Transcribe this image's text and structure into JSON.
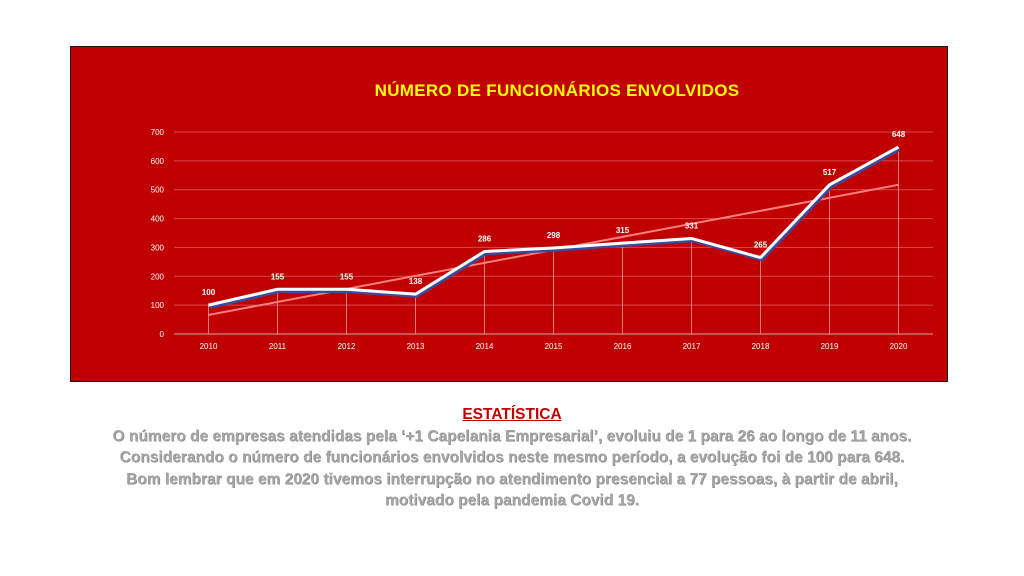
{
  "chart_data": {
    "type": "line",
    "title": "NÚMERO DE FUNCIONÁRIOS  ENVOLVIDOS",
    "categories": [
      "2010",
      "2011",
      "2012",
      "2013",
      "2014",
      "2015",
      "2016",
      "2017",
      "2018",
      "2019",
      "2020"
    ],
    "series": [
      {
        "values": [
          100,
          155,
          155,
          138,
          286,
          298,
          315,
          331,
          265,
          517,
          648
        ]
      }
    ],
    "trendline": {
      "type": "linear",
      "start": 66,
      "end": 517
    },
    "yticks": [
      "0",
      "100",
      "200",
      "300",
      "400",
      "500",
      "600",
      "700"
    ],
    "ylim": [
      0,
      700
    ],
    "grid": true,
    "colors": {
      "background": "#c00000",
      "line": "#ffffff",
      "line_shadow": "#3a4a9c",
      "trend": "#ff8080",
      "title": "#ffff00"
    }
  },
  "stats": {
    "heading": "ESTATÍSTICA",
    "lines": [
      "O número de empresas atendidas pela ‘+1 Capelania Empresarial’, evoluiu de 1 para 26 ao longo de 11 anos.",
      "Considerando o número de funcionários envolvidos neste mesmo período, a evolução foi de 100 para 648.",
      "Bom lembrar que em 2020  tivemos interrupção no atendimento presencial a 77 pessoas, à partir de abril,",
      "motivado pela pandemia Covid 19."
    ]
  }
}
